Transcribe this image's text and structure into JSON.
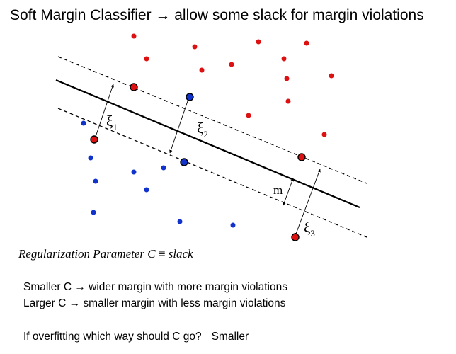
{
  "title": "Soft Margin Classifier → allow some slack for margin violations",
  "diagram": {
    "labels": {
      "xi1": "ξ",
      "xi1_sub": "1",
      "xi2": "ξ",
      "xi2_sub": "2",
      "xi3": "ξ",
      "xi3_sub": "3",
      "m": "m"
    },
    "colors": {
      "red_class": "#dd1111",
      "blue_class": "#1133cc",
      "lines": "#000000"
    }
  },
  "formula": {
    "lhs": "Regularization Parameter C",
    "symbol": "≡",
    "rhs": "slack"
  },
  "notes": {
    "smaller": "Smaller C → wider margin with more margin violations",
    "larger": "Larger C → smaller margin with less margin violations"
  },
  "question": {
    "text": "If overfitting which way should C go?",
    "answer": "Smaller"
  }
}
